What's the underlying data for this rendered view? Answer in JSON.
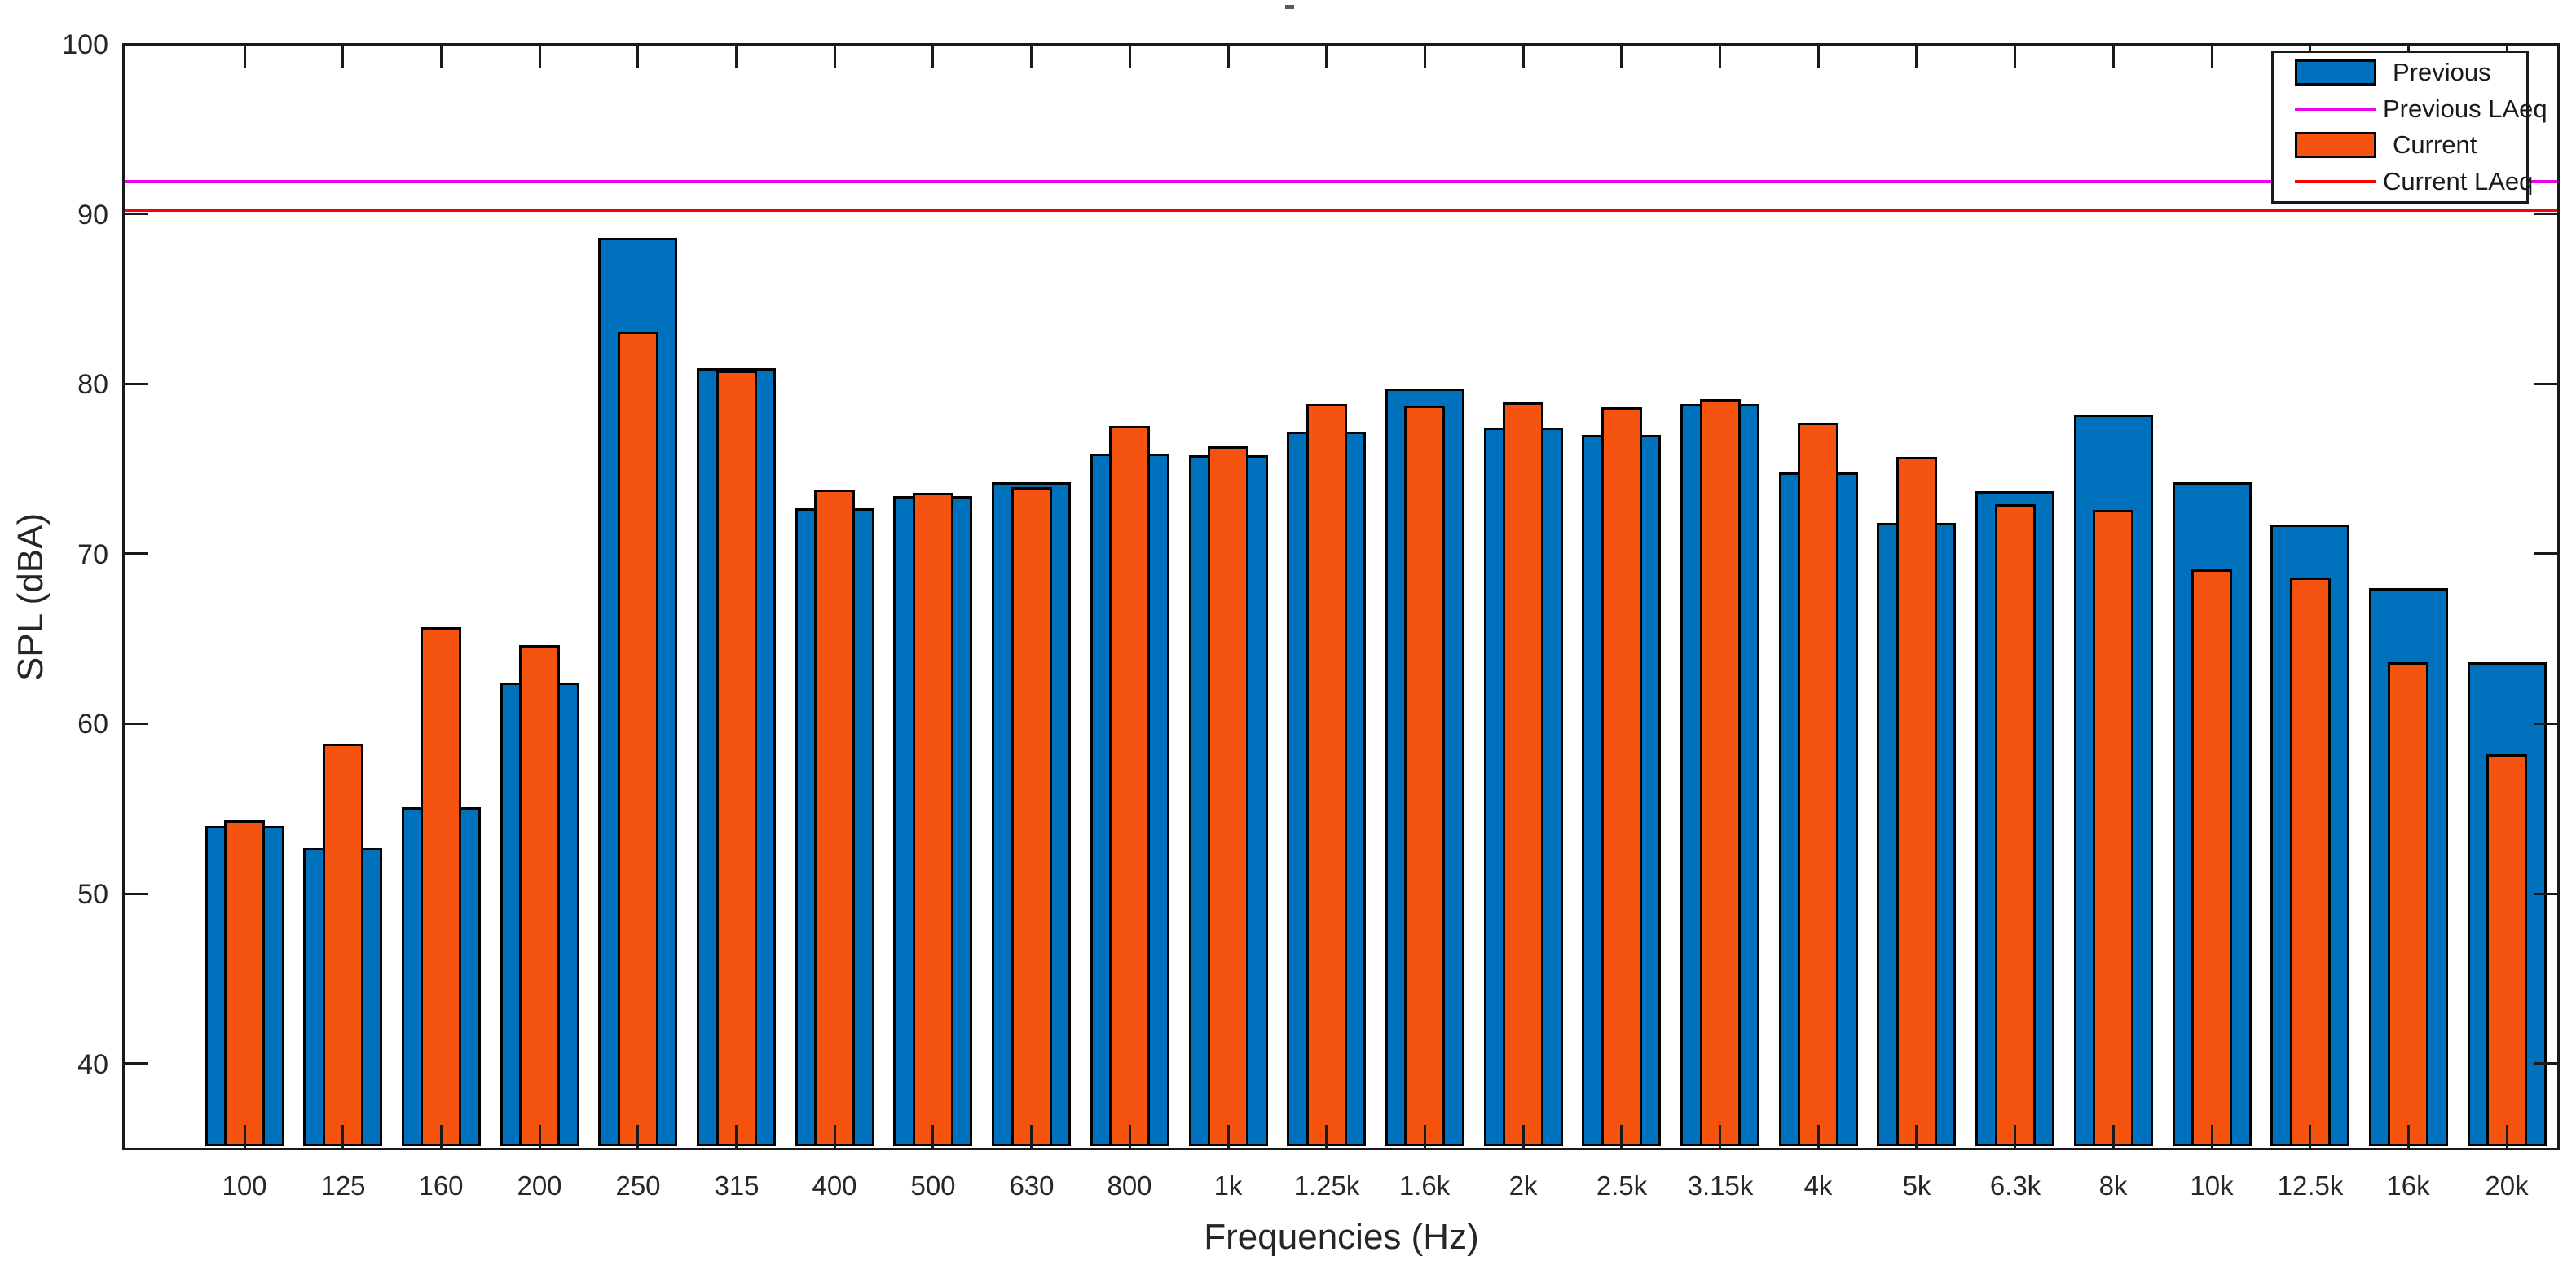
{
  "figure": {
    "background": "#FFFFFF"
  },
  "chart_data": {
    "type": "bar",
    "title": "",
    "xlabel": "Frequencies (Hz)",
    "ylabel": "SPL (dBA)",
    "ylim": [
      35,
      100
    ],
    "yticks": [
      40,
      50,
      60,
      70,
      80,
      90,
      100
    ],
    "grid": false,
    "legend_position": "top-right",
    "categories": [
      "100",
      "125",
      "160",
      "200",
      "250",
      "315",
      "400",
      "500",
      "630",
      "800",
      "1k",
      "1.25k",
      "1.6k",
      "2k",
      "2.5k",
      "3.15k",
      "4k",
      "5k",
      "6.3k",
      "8k",
      "10k",
      "12.5k",
      "16k",
      "20k"
    ],
    "series": [
      {
        "name": "Previous",
        "type": "bar",
        "color": "#0072BD",
        "values": [
          54.0,
          52.7,
          55.1,
          62.4,
          88.6,
          80.9,
          72.7,
          73.4,
          74.2,
          75.9,
          75.8,
          77.2,
          79.7,
          77.4,
          77.0,
          78.8,
          74.8,
          71.8,
          73.7,
          78.2,
          74.2,
          71.7,
          68.0,
          63.6
        ]
      },
      {
        "name": "Previous LAeq",
        "type": "hline",
        "color": "#EB00EB",
        "value": 91.9
      },
      {
        "name": "Current",
        "type": "bar",
        "color": "#F4540F",
        "values": [
          54.3,
          58.8,
          65.7,
          64.6,
          83.1,
          80.8,
          73.8,
          73.6,
          73.9,
          77.5,
          76.3,
          78.8,
          78.7,
          78.9,
          78.6,
          79.1,
          77.7,
          75.7,
          72.9,
          72.6,
          69.1,
          68.6,
          63.6,
          58.2
        ]
      },
      {
        "name": "Current LAeq",
        "type": "hline",
        "color": "#FF0000",
        "value": 90.2
      }
    ]
  }
}
